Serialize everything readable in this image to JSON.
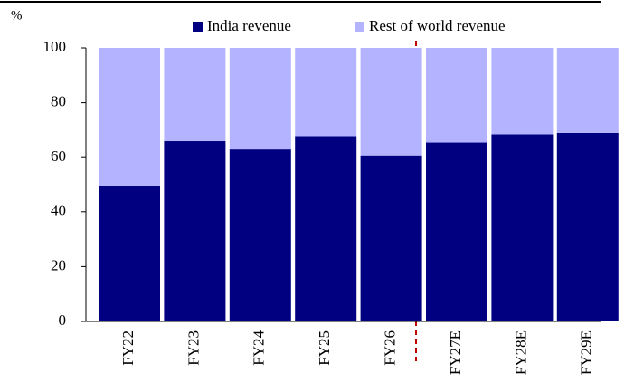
{
  "chart_data": {
    "type": "stacked_bar",
    "y_label": "%",
    "categories": [
      "FY22",
      "FY23",
      "FY24",
      "FY25",
      "FY26",
      "FY27E",
      "FY28E",
      "FY29E"
    ],
    "series": [
      {
        "name": "India revenue",
        "color": "#000080",
        "values": [
          49.5,
          66,
          63,
          67.5,
          60.5,
          65.5,
          68.5,
          69
        ]
      },
      {
        "name": "Rest of world revenue",
        "color": "#b3b3ff",
        "values": [
          50.5,
          34,
          37,
          32.5,
          39.5,
          34.5,
          31.5,
          31
        ]
      }
    ],
    "ylim": [
      0,
      100
    ],
    "yticks": [
      0,
      20,
      40,
      60,
      80,
      100
    ],
    "legend": "top"
  }
}
